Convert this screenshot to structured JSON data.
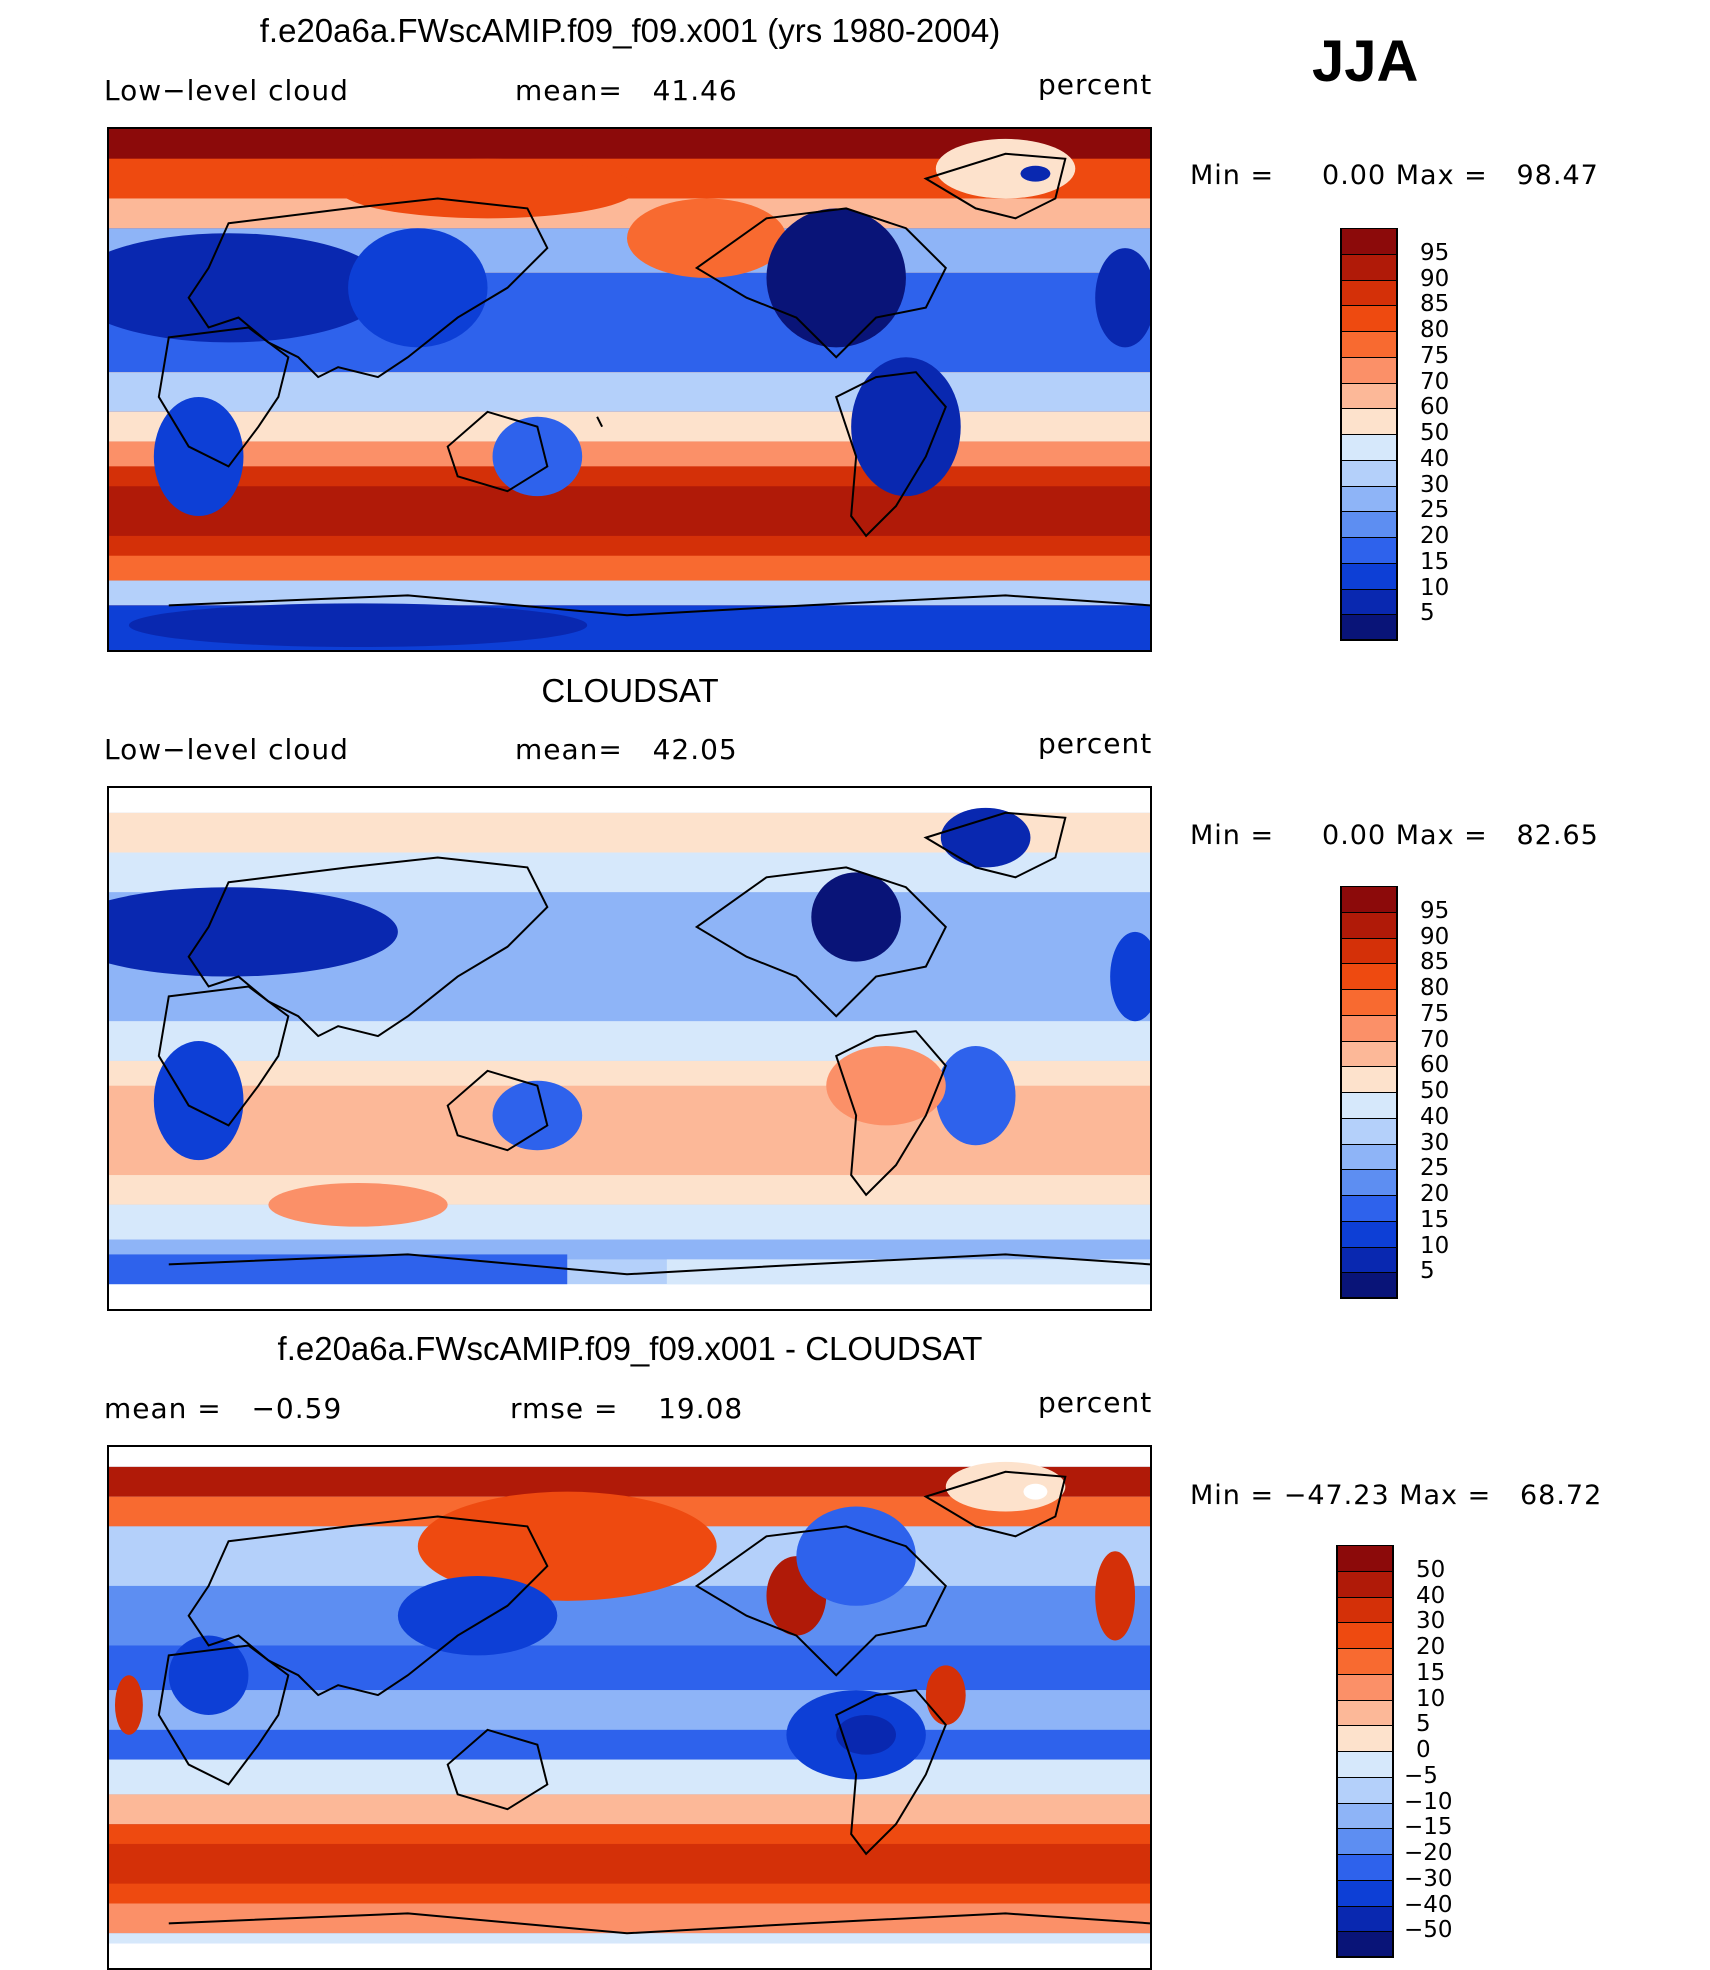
{
  "season": "JJA",
  "panels": [
    {
      "title": "f.e20a6a.FWscAMIP.f09_f09.x001 (yrs 1980-2004)",
      "left_label": "Low−level cloud",
      "center_label": "mean=   41.46",
      "right_label": "percent",
      "minmax": "Min =     0.00 Max =   98.47",
      "colorbar_labels": [
        "95",
        "90",
        "85",
        "80",
        "75",
        "70",
        "60",
        "50",
        "40",
        "30",
        "25",
        "20",
        "15",
        "10",
        "5"
      ],
      "colorbar_colors": [
        "#8c0a0a",
        "#b01a08",
        "#d43008",
        "#ee4a10",
        "#f86a30",
        "#fb9068",
        "#fcb898",
        "#fde2cc",
        "#d6e8fb",
        "#b4d0fa",
        "#8eb4f7",
        "#5d8ef2",
        "#2e62ec",
        "#0d3fd6",
        "#0928b0",
        "#091478"
      ]
    },
    {
      "title": "CLOUDSAT",
      "left_label": "Low−level cloud",
      "center_label": "mean=   42.05",
      "right_label": "percent",
      "minmax": "Min =     0.00 Max =   82.65",
      "colorbar_labels": [
        "95",
        "90",
        "85",
        "80",
        "75",
        "70",
        "60",
        "50",
        "40",
        "30",
        "25",
        "20",
        "15",
        "10",
        "5"
      ],
      "colorbar_colors": [
        "#8c0a0a",
        "#b01a08",
        "#d43008",
        "#ee4a10",
        "#f86a30",
        "#fb9068",
        "#fcb898",
        "#fde2cc",
        "#d6e8fb",
        "#b4d0fa",
        "#8eb4f7",
        "#5d8ef2",
        "#2e62ec",
        "#0d3fd6",
        "#0928b0",
        "#091478"
      ]
    },
    {
      "title": "f.e20a6a.FWscAMIP.f09_f09.x001 - CLOUDSAT",
      "left_label": "mean =   −0.59",
      "center_label": "rmse =    19.08",
      "right_label": "percent",
      "minmax": "Min = −47.23 Max =   68.72",
      "colorbar_labels": [
        "50",
        "40",
        "30",
        "20",
        "15",
        "10",
        "5",
        "0",
        "−5",
        "−10",
        "−15",
        "−20",
        "−30",
        "−40",
        "−50"
      ],
      "colorbar_colors": [
        "#8c0a0a",
        "#b01a08",
        "#d43008",
        "#ee4a10",
        "#f86a30",
        "#fb9068",
        "#fcb898",
        "#fde2cc",
        "#d6e8fb",
        "#b4d0fa",
        "#8eb4f7",
        "#5d8ef2",
        "#2e62ec",
        "#0d3fd6",
        "#0928b0",
        "#091478"
      ]
    }
  ]
}
